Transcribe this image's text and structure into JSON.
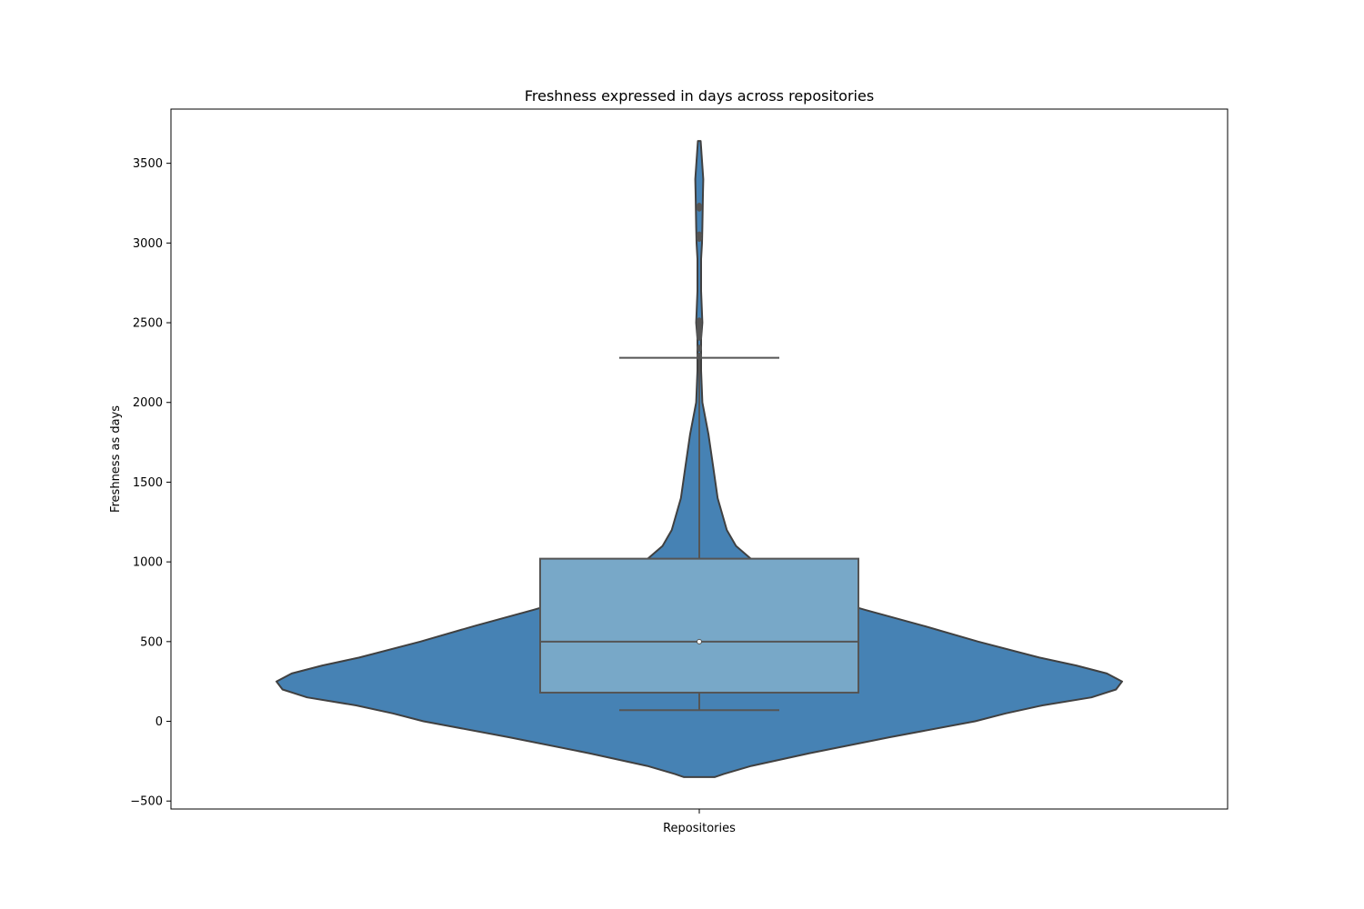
{
  "chart_data": {
    "type": "violin",
    "title": "Freshness expressed in days across repositories",
    "xlabel": "",
    "ylabel": "Freshness as days",
    "categories": [
      "Repositories"
    ],
    "ylim": [
      -550,
      3840
    ],
    "yticks": [
      -500,
      0,
      500,
      1000,
      1500,
      2000,
      2500,
      3000,
      3500
    ],
    "ytick_labels": [
      "−500",
      "0",
      "500",
      "1000",
      "1500",
      "2000",
      "2500",
      "3000",
      "3500"
    ],
    "grid": false,
    "colors": {
      "violin_fill": "#4682b4",
      "box_fill": "#78a8c8",
      "outline": "#404040",
      "lines": "#555555"
    },
    "violin": {
      "y_min": -350,
      "y_max": 3640,
      "density_profile": [
        [
          -350,
          0.05
        ],
        [
          -330,
          0.08
        ],
        [
          -280,
          0.17
        ],
        [
          -200,
          0.36
        ],
        [
          -100,
          0.62
        ],
        [
          0,
          0.9
        ],
        [
          50,
          1.0
        ],
        [
          100,
          1.12
        ],
        [
          150,
          1.28
        ],
        [
          200,
          1.36
        ],
        [
          250,
          1.38
        ],
        [
          300,
          1.33
        ],
        [
          350,
          1.23
        ],
        [
          400,
          1.11
        ],
        [
          500,
          0.91
        ],
        [
          600,
          0.73
        ],
        [
          700,
          0.54
        ],
        [
          800,
          0.36
        ],
        [
          900,
          0.25
        ],
        [
          1000,
          0.18
        ],
        [
          1100,
          0.12
        ],
        [
          1200,
          0.09
        ],
        [
          1400,
          0.06
        ],
        [
          1600,
          0.045
        ],
        [
          1800,
          0.03
        ],
        [
          2000,
          0.01
        ],
        [
          2200,
          0.0
        ],
        [
          2300,
          0.0
        ],
        [
          2400,
          0.005
        ],
        [
          2500,
          0.01
        ],
        [
          2700,
          0.003
        ],
        [
          2900,
          -0.005
        ],
        [
          3000,
          -0.009
        ],
        [
          3100,
          -0.01
        ],
        [
          3200,
          -0.011
        ],
        [
          3300,
          -0.012
        ],
        [
          3400,
          -0.013
        ],
        [
          3640,
          -0.014
        ]
      ]
    },
    "box": {
      "q1": 180,
      "median": 500,
      "q3": 1020,
      "whisker_low": 70,
      "whisker_high": 2280
    },
    "outliers": [
      2290,
      2340,
      2410,
      2430,
      2450,
      2470,
      2490,
      2510,
      3030,
      3050,
      3220,
      3230
    ]
  }
}
